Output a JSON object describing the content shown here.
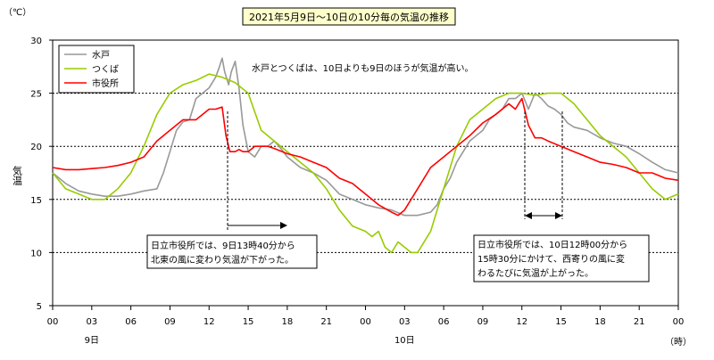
{
  "chart_data": {
    "type": "line",
    "title": "2021年5月9日～10日の10分毎の気温の推移",
    "ylabel": "気温",
    "y_unit": "（℃）",
    "x_unit": "（時）",
    "ylim": [
      5,
      30
    ],
    "yticks": [
      "5",
      "10",
      "15",
      "20",
      "25",
      "30"
    ],
    "xlim": [
      0,
      48
    ],
    "xticks": [
      "00",
      "03",
      "06",
      "09",
      "12",
      "15",
      "18",
      "21",
      "00",
      "03",
      "06",
      "09",
      "12",
      "15",
      "18",
      "21",
      "00"
    ],
    "day_labels": [
      {
        "hour": 3,
        "text": "9日"
      },
      {
        "hour": 27,
        "text": "10日"
      }
    ],
    "grid": "horizontal dotted at 10, 15, 20, 25",
    "legend_position": "top-left",
    "series": [
      {
        "name": "水戸",
        "color": "#999999",
        "x": [
          0,
          1,
          2,
          3,
          4,
          5,
          6,
          7,
          8,
          8.5,
          9,
          9.5,
          10,
          10.5,
          11,
          11.5,
          12,
          12.5,
          12.8,
          13,
          13.2,
          13.5,
          13.7,
          14,
          14.3,
          14.6,
          15,
          15.5,
          16,
          16.5,
          17,
          17.5,
          18,
          19,
          20,
          21,
          22,
          23,
          24,
          25,
          26,
          27,
          28,
          29,
          29.5,
          30,
          30.5,
          31,
          31.5,
          32,
          33,
          33.5,
          34,
          34.5,
          35,
          35.5,
          36,
          36.5,
          37,
          37.5,
          38,
          38.5,
          39,
          39.5,
          40,
          41,
          42,
          43,
          44,
          45,
          46,
          47,
          48
        ],
        "y": [
          17.5,
          16.5,
          15.8,
          15.5,
          15.3,
          15.3,
          15.5,
          15.8,
          16,
          17.5,
          19.5,
          21.5,
          22.3,
          22.5,
          24.5,
          25,
          25.5,
          26.5,
          27.5,
          28.3,
          27,
          25.8,
          27,
          28,
          25.5,
          22,
          19.5,
          19,
          20,
          20,
          20.5,
          19.8,
          19,
          18,
          17.5,
          16.8,
          15.5,
          15,
          14.5,
          14.2,
          14,
          13.5,
          13.5,
          13.8,
          14.5,
          16,
          17,
          18.5,
          19.5,
          20.5,
          21.5,
          22.5,
          23,
          23.5,
          24.5,
          24.5,
          25,
          23.5,
          25,
          24.5,
          23.8,
          23.5,
          23,
          22.2,
          21.8,
          21.5,
          20.8,
          20.3,
          20,
          19.3,
          18.5,
          17.8,
          17.5
        ]
      },
      {
        "name": "つくば",
        "color": "#99cc00",
        "x": [
          0,
          1,
          2,
          3,
          4,
          5,
          6,
          7,
          8,
          9,
          10,
          11,
          12,
          13,
          14,
          15,
          16,
          17,
          18,
          19,
          20,
          21,
          22,
          23,
          24,
          24.5,
          25,
          25.5,
          26,
          26.5,
          27,
          27.5,
          28,
          29,
          30,
          31,
          32,
          33,
          34,
          35,
          36,
          37,
          38,
          39,
          40,
          41,
          42,
          43,
          44,
          45,
          46,
          47,
          48
        ],
        "y": [
          17.5,
          16,
          15.5,
          15,
          15,
          16,
          17.5,
          20,
          23,
          25,
          25.8,
          26.2,
          26.8,
          26.5,
          26,
          25,
          21.5,
          20.5,
          19.5,
          18.5,
          17.5,
          16,
          14,
          12.5,
          12,
          11.5,
          12,
          10.5,
          10,
          11,
          10.5,
          10,
          10,
          12,
          16,
          20,
          22.5,
          23.5,
          24.5,
          25,
          25,
          24.8,
          25,
          25,
          24,
          22.5,
          21,
          20,
          19,
          17.5,
          16,
          15,
          15.5
        ]
      },
      {
        "name": "市役所",
        "color": "#ff0000",
        "x": [
          0,
          1,
          2,
          3,
          4,
          5,
          6,
          7,
          8,
          9,
          10,
          11,
          12,
          12.5,
          13,
          13.3,
          13.6,
          14,
          14.3,
          14.6,
          15,
          15.5,
          16,
          16.5,
          17,
          18,
          19,
          20,
          21,
          22,
          23,
          24,
          25,
          26,
          26.5,
          27,
          28,
          29,
          30,
          31,
          32,
          33,
          34,
          35,
          35.5,
          36,
          36.5,
          37,
          37.5,
          38,
          39,
          40,
          41,
          42,
          43,
          44,
          45,
          46,
          47,
          48
        ],
        "y": [
          18,
          17.8,
          17.8,
          17.9,
          18,
          18.2,
          18.5,
          19,
          20.5,
          21.5,
          22.5,
          22.5,
          23.5,
          23.5,
          23.7,
          21,
          19.5,
          19.5,
          19.7,
          19.5,
          19.5,
          20,
          20,
          20,
          19.8,
          19.3,
          19,
          18.5,
          18,
          17,
          16.5,
          15.5,
          14.5,
          13.8,
          13.5,
          14,
          16,
          18,
          19,
          20,
          21,
          22.2,
          23,
          24,
          23.5,
          24.5,
          22,
          20.8,
          20.8,
          20.5,
          20,
          19.5,
          19,
          18.5,
          18.3,
          18,
          17.5,
          17.5,
          17,
          16.8
        ]
      }
    ],
    "annotations": {
      "top": "水戸とつくばは、10日よりも9日のほうが気温が高い。",
      "left_box": [
        "日立市役所では、9日13時40分から",
        "北東の風に変わり気温が下がった。"
      ],
      "right_box": [
        "日立市役所では、10日12時00分から",
        "15時30分にかけて、西寄りの風に変",
        "わるたびに気温が上がった。"
      ]
    }
  }
}
